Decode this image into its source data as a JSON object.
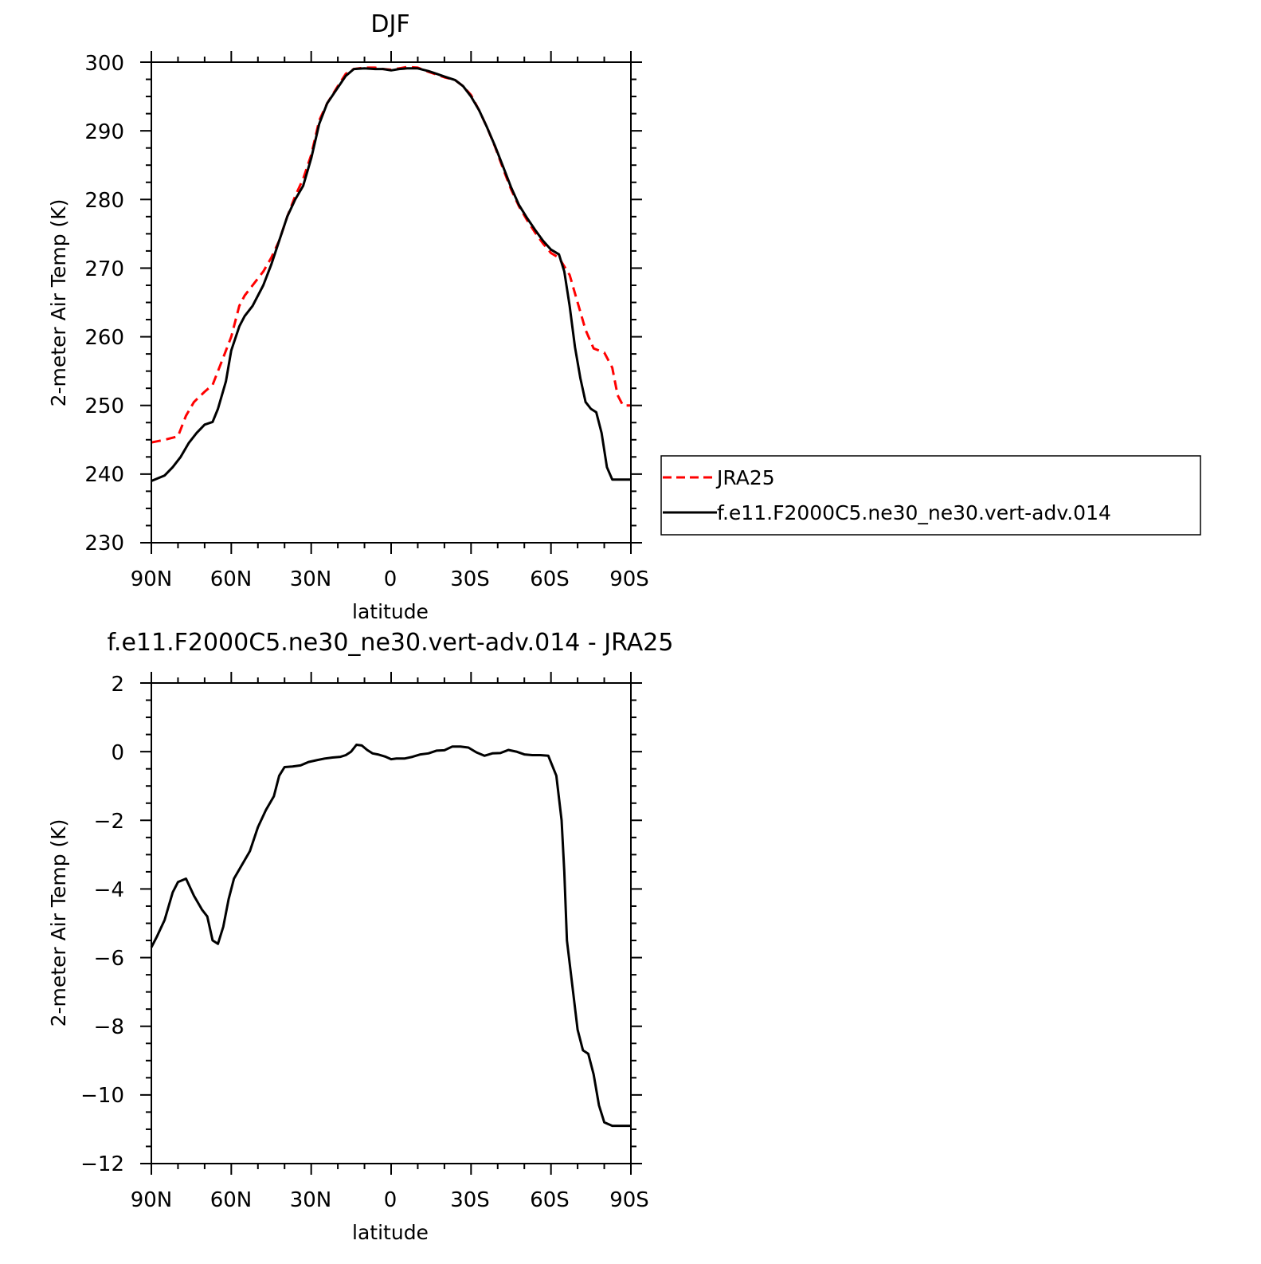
{
  "chart_data": [
    {
      "type": "line",
      "title": "DJF",
      "xlabel": "latitude",
      "ylabel": "2-meter Air Temp (K)",
      "ylim": [
        230,
        300
      ],
      "yticks": [
        "230",
        "240",
        "250",
        "260",
        "270",
        "280",
        "290",
        "300"
      ],
      "xlim": [
        90,
        -90
      ],
      "xtick_values": [
        90,
        60,
        30,
        0,
        -30,
        -60,
        -90
      ],
      "xticks": [
        "90N",
        "60N",
        "30N",
        "0",
        "30S",
        "60S",
        "90S"
      ],
      "grid": false,
      "legend_position": "right of plot",
      "series": [
        {
          "name": "JRA25",
          "color": "#ff0000",
          "style": "dashed",
          "x": [
            90,
            85,
            80,
            77,
            74,
            70,
            67,
            64,
            60,
            57,
            55,
            52,
            48,
            45,
            42,
            39,
            36,
            33,
            30,
            27,
            24,
            20,
            17,
            14,
            10,
            6,
            3,
            0,
            -3,
            -6,
            -10,
            -14,
            -17,
            -20,
            -24,
            -27,
            -30,
            -33,
            -36,
            -39,
            -42,
            -45,
            -48,
            -51,
            -54,
            -57,
            -60,
            -63,
            -67,
            -70,
            -73,
            -76,
            -80,
            -83,
            -85,
            -87,
            -90
          ],
          "y": [
            244.6,
            245.0,
            245.5,
            248.5,
            250.5,
            252.0,
            253.0,
            256.0,
            260.0,
            264.5,
            266.0,
            267.5,
            269.5,
            271.5,
            274.0,
            277.5,
            280.5,
            283.0,
            286.5,
            291.5,
            294.0,
            296.5,
            298.3,
            299.0,
            299.2,
            299.2,
            299.0,
            298.9,
            299.1,
            299.3,
            299.2,
            298.6,
            298.2,
            297.8,
            297.4,
            296.5,
            295.2,
            293.0,
            290.5,
            287.7,
            284.5,
            281.5,
            279.0,
            277.0,
            275.2,
            273.6,
            272.2,
            271.5,
            269.0,
            265.0,
            261.0,
            258.3,
            257.7,
            255.5,
            251.5,
            250.0,
            250.0
          ]
        },
        {
          "name": "f.e11.F2000C5.ne30_ne30.vert-adv.014",
          "color": "#000000",
          "style": "solid",
          "x": [
            90,
            85,
            82,
            79,
            76,
            73,
            70,
            67,
            65,
            62,
            60,
            57,
            55,
            52,
            48,
            45,
            42,
            39,
            36,
            33,
            30,
            27,
            24,
            20,
            17,
            14,
            10,
            6,
            3,
            0,
            -3,
            -6,
            -10,
            -14,
            -17,
            -20,
            -24,
            -27,
            -30,
            -33,
            -36,
            -39,
            -42,
            -45,
            -48,
            -51,
            -54,
            -57,
            -60,
            -63,
            -65,
            -67,
            -69,
            -71,
            -73,
            -75,
            -77,
            -79,
            -81,
            -83,
            -85,
            -87,
            -90
          ],
          "y": [
            239.0,
            239.8,
            241.0,
            242.5,
            244.5,
            246.0,
            247.2,
            247.6,
            249.5,
            253.5,
            258.0,
            261.5,
            263.0,
            264.5,
            267.5,
            270.5,
            274.0,
            277.5,
            280.0,
            282.0,
            286.0,
            291.0,
            294.0,
            296.3,
            298.0,
            299.0,
            299.1,
            299.0,
            299.0,
            298.8,
            299.0,
            299.1,
            299.1,
            298.7,
            298.3,
            297.9,
            297.4,
            296.5,
            295.0,
            293.0,
            290.5,
            287.8,
            284.8,
            281.8,
            279.2,
            277.3,
            275.6,
            274.0,
            272.7,
            272.0,
            269.5,
            264.5,
            258.5,
            254.0,
            250.5,
            249.5,
            249.0,
            246.0,
            241.0,
            239.2,
            239.2,
            239.2,
            239.2
          ]
        }
      ]
    },
    {
      "type": "line",
      "title": "f.e11.F2000C5.ne30_ne30.vert-adv.014 - JRA25",
      "xlabel": "latitude",
      "ylabel": "2-meter Air Temp (K)",
      "ylim": [
        -12,
        2
      ],
      "yticks": [
        "−12",
        "−10",
        "−8",
        "−6",
        "−4",
        "−2",
        "0",
        "2"
      ],
      "ytick_values": [
        -12,
        -10,
        -8,
        -6,
        -4,
        -2,
        0,
        2
      ],
      "xlim": [
        90,
        -90
      ],
      "xtick_values": [
        90,
        60,
        30,
        0,
        -30,
        -60,
        -90
      ],
      "xticks": [
        "90N",
        "60N",
        "30N",
        "0",
        "30S",
        "60S",
        "90S"
      ],
      "grid": false,
      "series": [
        {
          "color": "#000000",
          "style": "solid",
          "x": [
            90,
            88,
            85,
            82,
            80,
            77,
            74,
            71,
            69,
            67,
            65,
            63,
            61,
            59,
            56,
            53,
            50,
            47,
            44,
            42,
            40,
            37,
            34,
            31,
            28,
            25,
            22,
            19,
            17,
            15,
            13,
            11,
            9,
            7,
            5,
            2,
            0,
            -2,
            -5,
            -8,
            -11,
            -14,
            -17,
            -20,
            -23,
            -26,
            -29,
            -32,
            -35,
            -38,
            -41,
            -44,
            -47,
            -50,
            -53,
            -56,
            -59,
            -62,
            -64,
            -65,
            -66,
            -68,
            -70,
            -72,
            -74,
            -76,
            -78,
            -80,
            -83,
            -85,
            -87,
            -88,
            -90
          ],
          "y": [
            -5.7,
            -5.4,
            -4.9,
            -4.1,
            -3.8,
            -3.7,
            -4.2,
            -4.6,
            -4.8,
            -5.5,
            -5.6,
            -5.1,
            -4.3,
            -3.7,
            -3.3,
            -2.9,
            -2.2,
            -1.7,
            -1.3,
            -0.7,
            -0.45,
            -0.43,
            -0.4,
            -0.3,
            -0.25,
            -0.2,
            -0.17,
            -0.15,
            -0.1,
            0.0,
            0.2,
            0.18,
            0.05,
            -0.05,
            -0.08,
            -0.15,
            -0.22,
            -0.2,
            -0.2,
            -0.15,
            -0.08,
            -0.05,
            0.03,
            0.04,
            0.15,
            0.15,
            0.12,
            -0.02,
            -0.12,
            -0.05,
            -0.04,
            0.05,
            0.0,
            -0.08,
            -0.1,
            -0.1,
            -0.12,
            -0.7,
            -2.0,
            -3.5,
            -5.5,
            -6.8,
            -8.1,
            -8.7,
            -8.8,
            -9.4,
            -10.3,
            -10.8,
            -10.9,
            -10.9,
            -10.9,
            -10.9,
            -10.9
          ]
        }
      ]
    }
  ]
}
